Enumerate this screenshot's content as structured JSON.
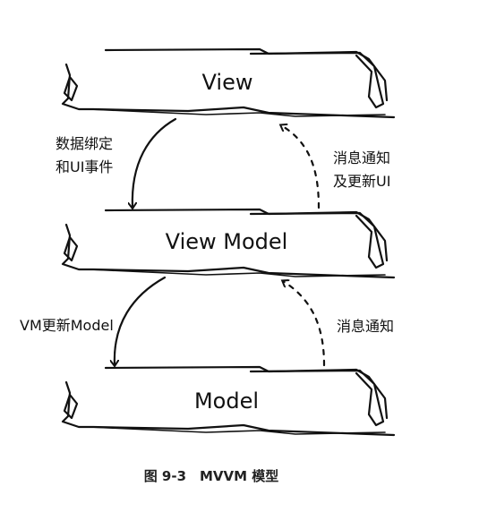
{
  "layers": {
    "view": "View",
    "viewmodel": "View Model",
    "model": "Model"
  },
  "edges": {
    "bind_line1": "数据绑定",
    "bind_line2": "和UI事件",
    "notify_ui_line1": "消息通知",
    "notify_ui_line2": "及更新UI",
    "vm_update_model": "VM更新Model",
    "notify": "消息通知"
  },
  "caption": "图 9-3　MVVM 模型",
  "colors": {
    "ink": "#111111",
    "background": "#ffffff"
  }
}
